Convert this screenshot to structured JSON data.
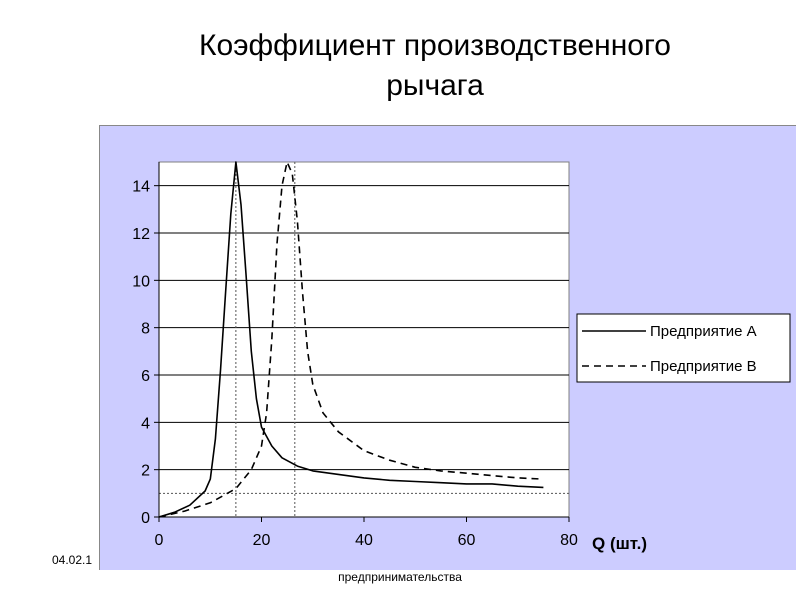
{
  "slide": {
    "title_line1": "Коэффициент производственного",
    "title_line2": "рычага",
    "footer_date": "04.02.1",
    "footer_note": "предпринимательства"
  },
  "colors": {
    "plot_background": "#ccccff",
    "plot_area": "#ffffff",
    "grid": "#000000",
    "series": "#000000",
    "reference_lines": "#555555"
  },
  "chart_data": {
    "type": "line",
    "title": "",
    "xlabel": "Q (шт.)",
    "ylabel": "",
    "xlim": [
      0,
      80
    ],
    "ylim": [
      0,
      15
    ],
    "x_ticks": [
      0,
      20,
      40,
      60,
      80
    ],
    "y_ticks": [
      0,
      2,
      4,
      6,
      8,
      10,
      12,
      14
    ],
    "grid": "horizontal",
    "legend_position": "right",
    "series": [
      {
        "name": "Предприятие А",
        "style": "solid",
        "points": [
          [
            0,
            0
          ],
          [
            3,
            0.2
          ],
          [
            6,
            0.5
          ],
          [
            9,
            1.1
          ],
          [
            10,
            1.6
          ],
          [
            11,
            3.3
          ],
          [
            12,
            6.2
          ],
          [
            13,
            9.5
          ],
          [
            14,
            12.8
          ],
          [
            15,
            15.0
          ],
          [
            16,
            13.2
          ],
          [
            17,
            10.2
          ],
          [
            18,
            7.0
          ],
          [
            19,
            5.0
          ],
          [
            20,
            3.8
          ],
          [
            22,
            3.0
          ],
          [
            24,
            2.5
          ],
          [
            27,
            2.15
          ],
          [
            30,
            1.95
          ],
          [
            35,
            1.8
          ],
          [
            40,
            1.65
          ],
          [
            45,
            1.55
          ],
          [
            50,
            1.5
          ],
          [
            55,
            1.45
          ],
          [
            60,
            1.4
          ],
          [
            65,
            1.4
          ],
          [
            70,
            1.3
          ],
          [
            75,
            1.25
          ]
        ]
      },
      {
        "name": "Предприятие В",
        "style": "dashed",
        "points": [
          [
            0,
            0
          ],
          [
            5,
            0.25
          ],
          [
            10,
            0.6
          ],
          [
            15,
            1.2
          ],
          [
            18,
            2.0
          ],
          [
            20,
            3.0
          ],
          [
            21,
            4.4
          ],
          [
            22,
            7.5
          ],
          [
            23,
            11.5
          ],
          [
            24,
            14.0
          ],
          [
            25,
            15.0
          ],
          [
            26,
            14.5
          ],
          [
            27,
            12.5
          ],
          [
            28,
            9.5
          ],
          [
            29,
            7.0
          ],
          [
            30,
            5.6
          ],
          [
            32,
            4.4
          ],
          [
            35,
            3.6
          ],
          [
            40,
            2.8
          ],
          [
            45,
            2.4
          ],
          [
            50,
            2.1
          ],
          [
            55,
            1.95
          ],
          [
            60,
            1.85
          ],
          [
            65,
            1.75
          ],
          [
            70,
            1.65
          ],
          [
            75,
            1.6
          ]
        ]
      }
    ],
    "reference_lines": [
      {
        "axis": "x",
        "value": 15,
        "style": "dotted"
      },
      {
        "axis": "x",
        "value": 26.5,
        "style": "dotted"
      },
      {
        "axis": "y",
        "value": 1,
        "style": "dotted"
      }
    ]
  }
}
